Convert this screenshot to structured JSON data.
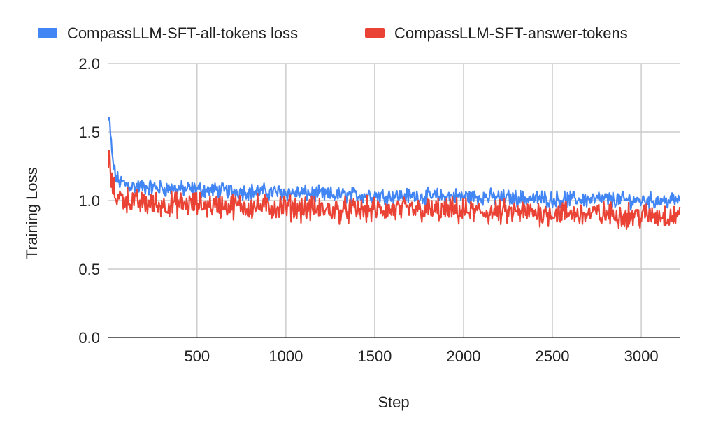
{
  "chart_data": {
    "type": "line",
    "title": "",
    "xlabel": "Step",
    "ylabel": "Training Loss",
    "xlim": [
      1,
      3220
    ],
    "ylim": [
      0,
      2.0
    ],
    "x_ticks": [
      500,
      1000,
      1500,
      2000,
      2500,
      3000
    ],
    "x_tick_labels": [
      "500",
      "1000",
      "1500",
      "2000",
      "2500",
      "3000"
    ],
    "y_ticks": [
      0,
      0.5,
      1.0,
      1.5,
      2.0
    ],
    "y_tick_labels": [
      "0.0",
      "0.5",
      "1.0",
      "1.5",
      "2.0"
    ],
    "grid": true,
    "legend_position": "top",
    "series": [
      {
        "name": "CompassLLM-SFT-all-tokens loss",
        "color": "#4285f4",
        "x": [
          1,
          10,
          20,
          40,
          60,
          100,
          150,
          200,
          300,
          500,
          700,
          1000,
          1250,
          1500,
          1750,
          2000,
          2250,
          2500,
          2750,
          3000,
          3220
        ],
        "y": [
          1.58,
          1.55,
          1.35,
          1.18,
          1.14,
          1.12,
          1.1,
          1.1,
          1.09,
          1.08,
          1.07,
          1.06,
          1.04,
          1.04,
          1.03,
          1.03,
          1.02,
          1.01,
          1.01,
          1.0,
          1.0
        ],
        "band": 0.09
      },
      {
        "name": "CompassLLM-SFT-answer-tokens",
        "color": "#ea4335",
        "x": [
          1,
          10,
          20,
          40,
          60,
          100,
          150,
          200,
          300,
          500,
          700,
          1000,
          1250,
          1500,
          1750,
          2000,
          2250,
          2500,
          2750,
          3000,
          3220
        ],
        "y": [
          1.3,
          1.26,
          1.12,
          1.04,
          1.03,
          1.01,
          0.99,
          0.98,
          0.97,
          0.97,
          0.96,
          0.95,
          0.93,
          0.93,
          0.93,
          0.92,
          0.91,
          0.91,
          0.9,
          0.89,
          0.89
        ],
        "band": 0.14
      }
    ]
  }
}
